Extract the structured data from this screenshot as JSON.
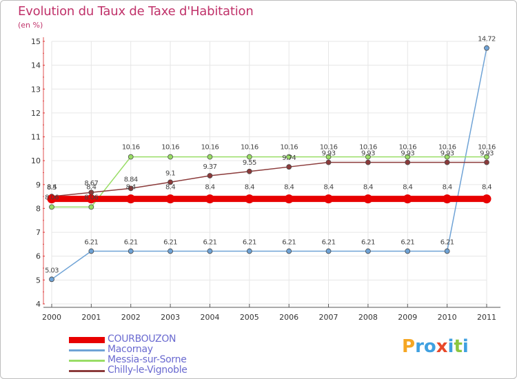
{
  "chart_data": {
    "type": "line",
    "title": "Evolution du Taux de Taxe d'Habitation",
    "subtitle": "(en %)",
    "xlabel": "",
    "ylabel": "",
    "x": [
      "2000",
      "2001",
      "2002",
      "2003",
      "2004",
      "2005",
      "2006",
      "2007",
      "2008",
      "2009",
      "2010",
      "2011"
    ],
    "ylim": [
      4,
      15
    ],
    "yticks": [
      "4",
      "5",
      "6",
      "7",
      "8",
      "9",
      "10",
      "11",
      "12",
      "13",
      "14",
      "15"
    ],
    "grid": true,
    "series": [
      {
        "name": "COURBOUZON",
        "color": "#e80000",
        "values": [
          8.4,
          8.4,
          8.4,
          8.4,
          8.4,
          8.4,
          8.4,
          8.4,
          8.4,
          8.4,
          8.4,
          8.4
        ],
        "labels": [
          "8.4",
          "8.4",
          "8.4",
          "8.4",
          "8.4",
          "8.4",
          "8.4",
          "8.4",
          "8.4",
          "8.4",
          "8.4",
          "8.4"
        ]
      },
      {
        "name": "Macornay",
        "color": "#6fa3d6",
        "values": [
          5.03,
          6.21,
          6.21,
          6.21,
          6.21,
          6.21,
          6.21,
          6.21,
          6.21,
          6.21,
          6.21,
          14.72
        ],
        "labels": [
          "5.03",
          "6.21",
          "6.21",
          "6.21",
          "6.21",
          "6.21",
          "6.21",
          "6.21",
          "6.21",
          "6.21",
          "6.21",
          "14.72"
        ]
      },
      {
        "name": "Messia-sur-Sorne",
        "color": "#99dd66",
        "values": [
          8.06,
          8.06,
          10.16,
          10.16,
          10.16,
          10.16,
          10.16,
          10.16,
          10.16,
          10.16,
          10.16,
          10.16
        ],
        "labels": [
          "8.06",
          "8.06",
          "10.16",
          "10.16",
          "10.16",
          "10.16",
          "10.16",
          "10.16",
          "10.16",
          "10.16",
          "10.16",
          "10.16"
        ]
      },
      {
        "name": "Chilly-le-Vignoble",
        "color": "#8b3a3a",
        "values": [
          8.5,
          8.67,
          8.84,
          9.1,
          9.37,
          9.55,
          9.74,
          9.93,
          9.93,
          9.93,
          9.93,
          9.93
        ],
        "labels": [
          "8.5",
          "8.67",
          "8.84",
          "9.1",
          "9.37",
          "9.55",
          "9.74",
          "9.93",
          "9.93",
          "9.93",
          "9.93",
          "9.93"
        ]
      }
    ]
  },
  "legend": {
    "items": [
      {
        "label": "COURBOUZON"
      },
      {
        "label": "Macornay"
      },
      {
        "label": "Messia-sur-Sorne"
      },
      {
        "label": "Chilly-le-Vignoble"
      }
    ]
  },
  "logo": {
    "letters": [
      "P",
      "r",
      "o",
      "x",
      "i",
      "t",
      "i"
    ],
    "colors": [
      "#f5a623",
      "#3fa0e0",
      "#3fa0e0",
      "#e8492a",
      "#3fa0e0",
      "#8cc63f",
      "#3fa0e0"
    ]
  }
}
